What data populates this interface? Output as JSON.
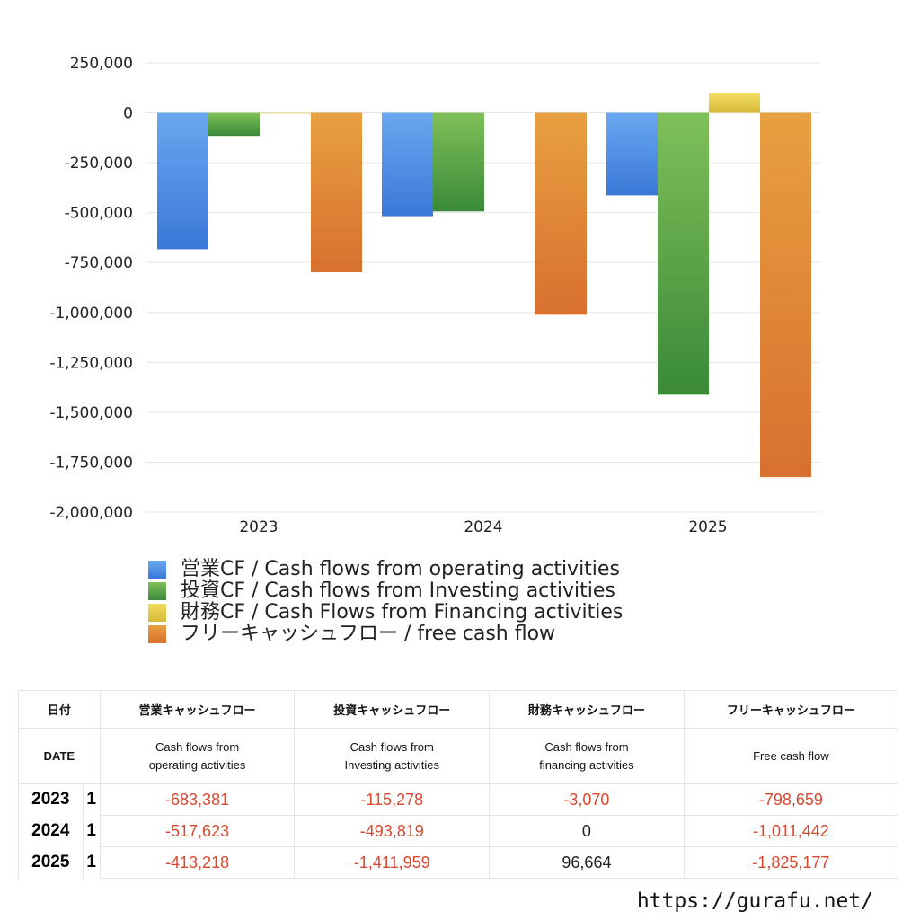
{
  "chart_data": {
    "type": "bar",
    "categories": [
      "2023",
      "2024",
      "2025"
    ],
    "ylim": [
      -2000000,
      250000
    ],
    "yticks": [
      250000,
      0,
      -250000,
      -500000,
      -750000,
      -1000000,
      -1250000,
      -1500000,
      -1750000,
      -2000000
    ],
    "ytick_labels": [
      "250,000",
      "0",
      "-250,000",
      "-500,000",
      "-750,000",
      "-1,000,000",
      "-1,250,000",
      "-1,500,000",
      "-1,750,000",
      "-2,000,000"
    ],
    "grid": true,
    "legend_position": "bottom-left",
    "series": [
      {
        "name": "営業CF / Cash flows from operating activities",
        "values": [
          -683381,
          -517623,
          -413218
        ],
        "color": "#3a78d8",
        "color_light": "#6aa8f0"
      },
      {
        "name": "投資CF / Cash flows from Investing activities",
        "values": [
          -115278,
          -493819,
          -1411959
        ],
        "color": "#3a8a38",
        "color_light": "#80c05a"
      },
      {
        "name": "財務CF / Cash Flows from Financing activities",
        "values": [
          -3070,
          0,
          96664
        ],
        "color": "#d8b838",
        "color_light": "#f0dc60"
      },
      {
        "name": "フリーキャッシュフロー / free cash flow",
        "values": [
          -798659,
          -1011442,
          -1825177
        ],
        "color": "#d87030",
        "color_light": "#e8a040"
      }
    ]
  },
  "table": {
    "headers_jp": [
      "日付",
      "営業キャッシュフロー",
      "投資キャッシュフロー",
      "財務キャッシュフロー",
      "フリーキャッシュフロー"
    ],
    "headers_en": [
      "DATE",
      "Cash flows from\noperating activities",
      "Cash flows from\nInvesting activities",
      "Cash flows from\nfinancing activities",
      "Free cash flow"
    ],
    "rows": [
      {
        "year": "2023",
        "q": "1",
        "cells": [
          "-683,381",
          "-115,278",
          "-3,070",
          "-798,659"
        ]
      },
      {
        "year": "2024",
        "q": "1",
        "cells": [
          "-517,623",
          "-493,819",
          "0",
          "-1,011,442"
        ]
      },
      {
        "year": "2025",
        "q": "1",
        "cells": [
          "-413,218",
          "-1,411,959",
          "96,664",
          "-1,825,177"
        ]
      }
    ]
  },
  "credit": "https://gurafu.net/"
}
